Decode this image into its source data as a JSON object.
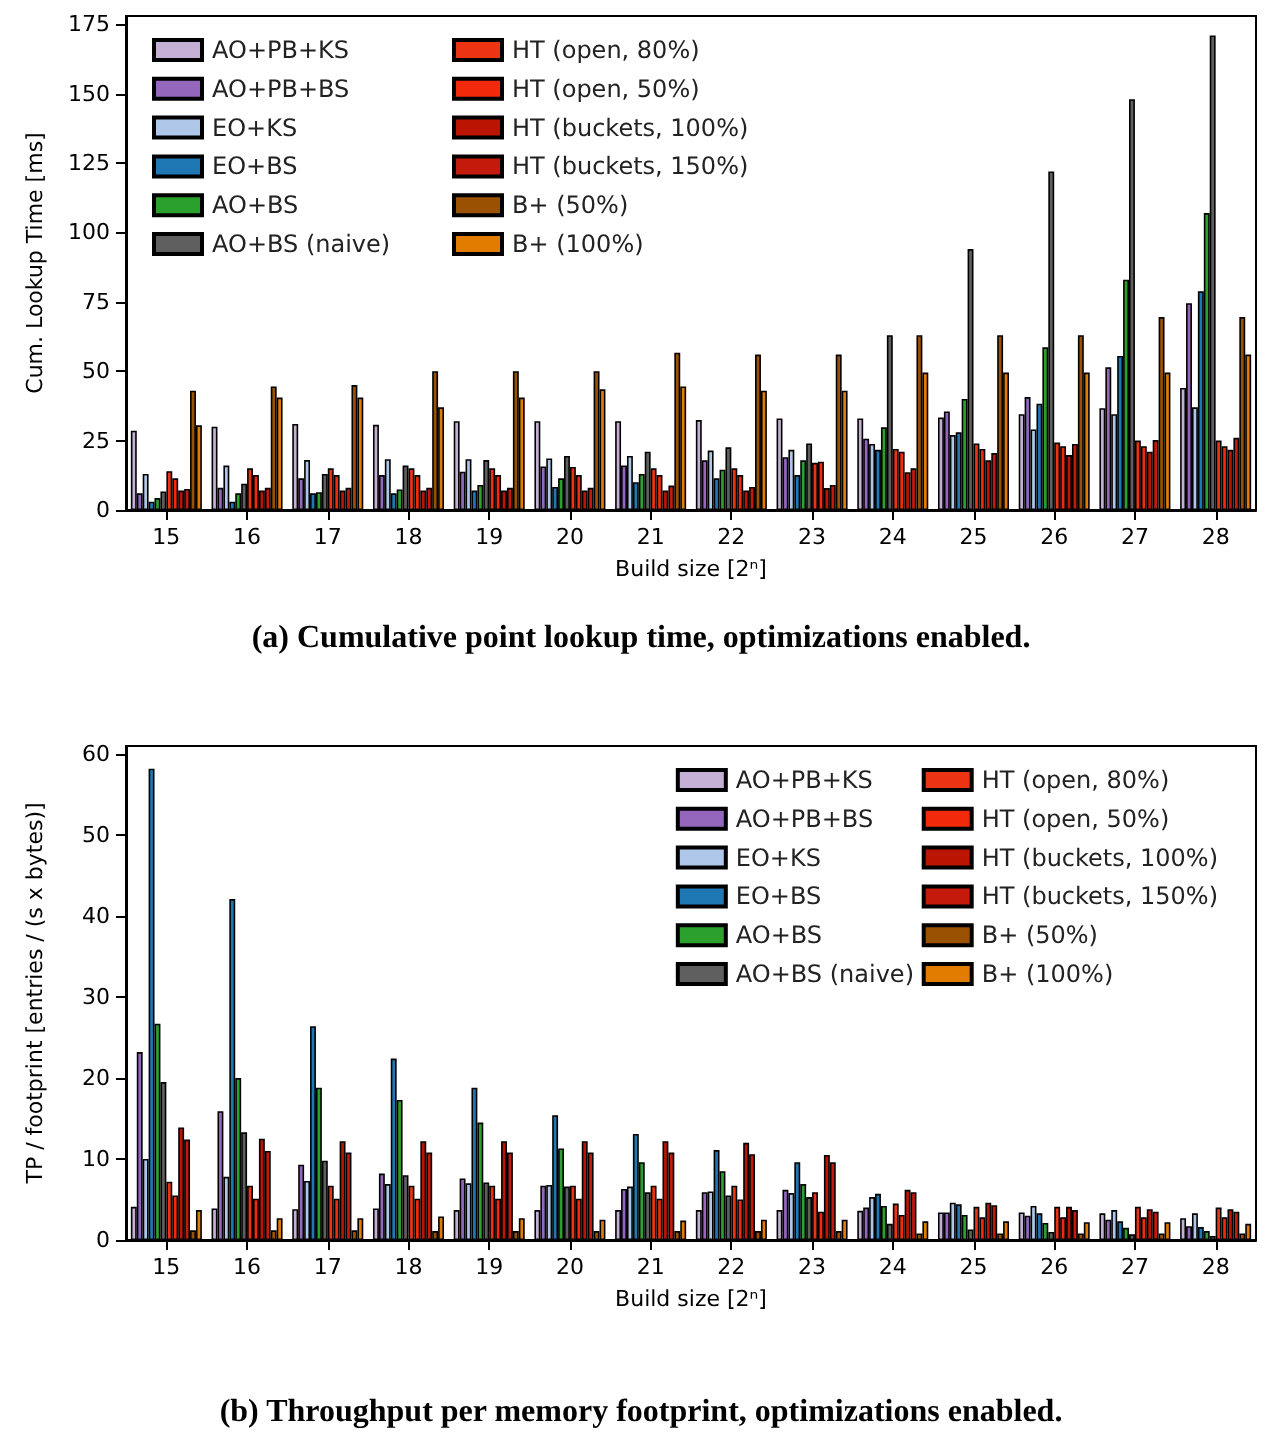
{
  "chart_data": [
    {
      "type": "bar",
      "title": "(a) Cumulative point lookup time, optimizations enabled.",
      "xlabel": "Build size [2ⁿ]",
      "ylabel": "Cum. Lookup Time [ms]",
      "categories": [
        "15",
        "16",
        "17",
        "18",
        "19",
        "20",
        "21",
        "22",
        "23",
        "24",
        "25",
        "26",
        "27",
        "28"
      ],
      "ylim": [
        0,
        178
      ],
      "yticks": [
        0,
        25,
        50,
        75,
        100,
        125,
        150,
        175
      ],
      "legend": "top left",
      "series": [
        {
          "name": "AO+PB+KS",
          "color": "#c5b0d5",
          "values": [
            28.6,
            30,
            31,
            30.7,
            32,
            32,
            32,
            32.4,
            33,
            33,
            33.3,
            34.5,
            36.7,
            44
          ]
        },
        {
          "name": "AO+PB+BS",
          "color": "#9467bd",
          "values": [
            6,
            8,
            11.4,
            12.6,
            13.8,
            15.7,
            16,
            17.9,
            19,
            25.7,
            35.5,
            40.7,
            51.4,
            74.5
          ]
        },
        {
          "name": "EO+KS",
          "color": "#aec7e8",
          "values": [
            13,
            16,
            18,
            18.3,
            18.3,
            18.6,
            19.5,
            21.4,
            21.7,
            23.8,
            27,
            29,
            34.5,
            37
          ]
        },
        {
          "name": "EO+BS",
          "color": "#1f77b4",
          "values": [
            3,
            3,
            6,
            6,
            7,
            8.3,
            10,
            11.4,
            12.6,
            21.7,
            28,
            38.3,
            55.5,
            78.8
          ]
        },
        {
          "name": "AO+BS",
          "color": "#2ca02c",
          "values": [
            4.3,
            6,
            6.4,
            7.4,
            9,
            11.4,
            13,
            14.5,
            17.9,
            29.8,
            40,
            58.6,
            83,
            107
          ]
        },
        {
          "name": "AO+BS (naive)",
          "color": "#5f5f5f",
          "values": [
            6.7,
            9.5,
            13,
            16,
            18,
            19.5,
            21,
            22.6,
            24,
            63,
            94,
            122,
            148,
            171
          ]
        },
        {
          "name": "HT (open, 80%)",
          "color": "#ec3412",
          "values": [
            14,
            15,
            15,
            15,
            15,
            15.5,
            15,
            15,
            17,
            22,
            24,
            24.3,
            25,
            25
          ]
        },
        {
          "name": "HT (open, 50%)",
          "color": "#f2290a",
          "values": [
            11.4,
            12.6,
            12.6,
            12.6,
            12.6,
            12.6,
            12.6,
            12.6,
            17.4,
            21,
            22,
            23,
            23,
            23
          ]
        },
        {
          "name": "HT (buckets, 100%)",
          "color": "#bb1400",
          "values": [
            7,
            7,
            7,
            7,
            7,
            7,
            7,
            7,
            7.9,
            13.6,
            17.9,
            19.8,
            21,
            21.7
          ]
        },
        {
          "name": "HT (buckets, 150%)",
          "color": "#c31a0c",
          "values": [
            7.6,
            8,
            8,
            8,
            8,
            8,
            8.8,
            8.3,
            9,
            15,
            20.5,
            23.8,
            25.2,
            26
          ]
        },
        {
          "name": "B+ (50%)",
          "color": "#9a5200",
          "values": [
            43,
            44.5,
            45,
            50,
            50,
            50,
            56.7,
            56,
            56,
            63,
            63,
            63,
            69.5,
            69.5
          ]
        },
        {
          "name": "B+ (100%)",
          "color": "#e27c00",
          "values": [
            30.5,
            40.5,
            40.5,
            37,
            40.5,
            43.5,
            44.5,
            43,
            43,
            49.5,
            49.5,
            49.5,
            49.5,
            56
          ]
        }
      ]
    },
    {
      "type": "bar",
      "title": "(b) Throughput per memory footprint, optimizations enabled.",
      "xlabel": "Build size [2ⁿ]",
      "ylabel": "TP / footprint [entries / (s x bytes)]",
      "categories": [
        "15",
        "16",
        "17",
        "18",
        "19",
        "20",
        "21",
        "22",
        "23",
        "24",
        "25",
        "26",
        "27",
        "28"
      ],
      "ylim": [
        0,
        61
      ],
      "yticks": [
        0,
        10,
        20,
        30,
        40,
        50,
        60
      ],
      "legend": "top right",
      "series": [
        {
          "name": "AO+PB+KS",
          "color": "#c5b0d5",
          "values": [
            4.1,
            3.9,
            3.8,
            3.9,
            3.7,
            3.7,
            3.7,
            3.7,
            3.7,
            3.6,
            3.4,
            3.4,
            3.3,
            2.7
          ]
        },
        {
          "name": "AO+PB+BS",
          "color": "#9467bd",
          "values": [
            23.2,
            15.9,
            9.3,
            8.2,
            7.6,
            6.7,
            6.3,
            5.9,
            6.2,
            4,
            3.4,
            3,
            2.5,
            1.7
          ]
        },
        {
          "name": "EO+KS",
          "color": "#aec7e8",
          "values": [
            10,
            7.8,
            7.3,
            6.9,
            7,
            6.8,
            6.6,
            6,
            5.8,
            5.3,
            4.6,
            4.2,
            3.7,
            3.3
          ]
        },
        {
          "name": "EO+BS",
          "color": "#1f77b4",
          "values": [
            58.2,
            42.1,
            26.4,
            22.4,
            18.8,
            15.4,
            13.1,
            11.1,
            9.6,
            5.7,
            4.4,
            3.3,
            2.3,
            1.6
          ]
        },
        {
          "name": "AO+BS",
          "color": "#2ca02c",
          "values": [
            26.7,
            20,
            18.8,
            17.3,
            14.5,
            11.3,
            9.6,
            8.5,
            6.9,
            4.2,
            3.1,
            2.1,
            1.5,
            1.1
          ]
        },
        {
          "name": "AO+BS (naive)",
          "color": "#5f5f5f",
          "values": [
            19.5,
            13.3,
            9.8,
            8,
            7.1,
            6.6,
            5.9,
            5.5,
            5.3,
            2,
            1.3,
            1,
            0.7,
            0.5
          ]
        },
        {
          "name": "HT (open, 80%)",
          "color": "#ec3412",
          "values": [
            7.2,
            6.7,
            6.7,
            6.7,
            6.7,
            6.7,
            6.7,
            6.7,
            5.9,
            4.5,
            4.1,
            4.1,
            4.1,
            4
          ]
        },
        {
          "name": "HT (open, 50%)",
          "color": "#f2290a",
          "values": [
            5.5,
            5.1,
            5.1,
            5.1,
            5.1,
            5.1,
            5.1,
            5,
            3.5,
            3.1,
            2.8,
            2.8,
            2.8,
            2.8
          ]
        },
        {
          "name": "HT (buckets, 100%)",
          "color": "#bb1400",
          "values": [
            13.9,
            12.5,
            12.2,
            12.2,
            12.2,
            12.2,
            12.2,
            12,
            10.5,
            6.2,
            4.6,
            4.1,
            3.8,
            3.8
          ]
        },
        {
          "name": "HT (buckets, 150%)",
          "color": "#c31a0c",
          "values": [
            12.4,
            11,
            10.8,
            10.8,
            10.8,
            10.8,
            10.8,
            10.6,
            9.6,
            5.9,
            4.3,
            3.7,
            3.5,
            3.5
          ]
        },
        {
          "name": "B+ (50%)",
          "color": "#9a5200",
          "values": [
            1.2,
            1.2,
            1.2,
            1.1,
            1.1,
            1.1,
            1.1,
            1.1,
            1.1,
            0.8,
            0.8,
            0.8,
            0.8,
            0.8
          ]
        },
        {
          "name": "B+ (100%)",
          "color": "#e27c00",
          "values": [
            3.7,
            2.7,
            2.7,
            2.9,
            2.7,
            2.5,
            2.4,
            2.5,
            2.5,
            2.3,
            2.3,
            2.2,
            2.2,
            2
          ]
        }
      ]
    }
  ]
}
